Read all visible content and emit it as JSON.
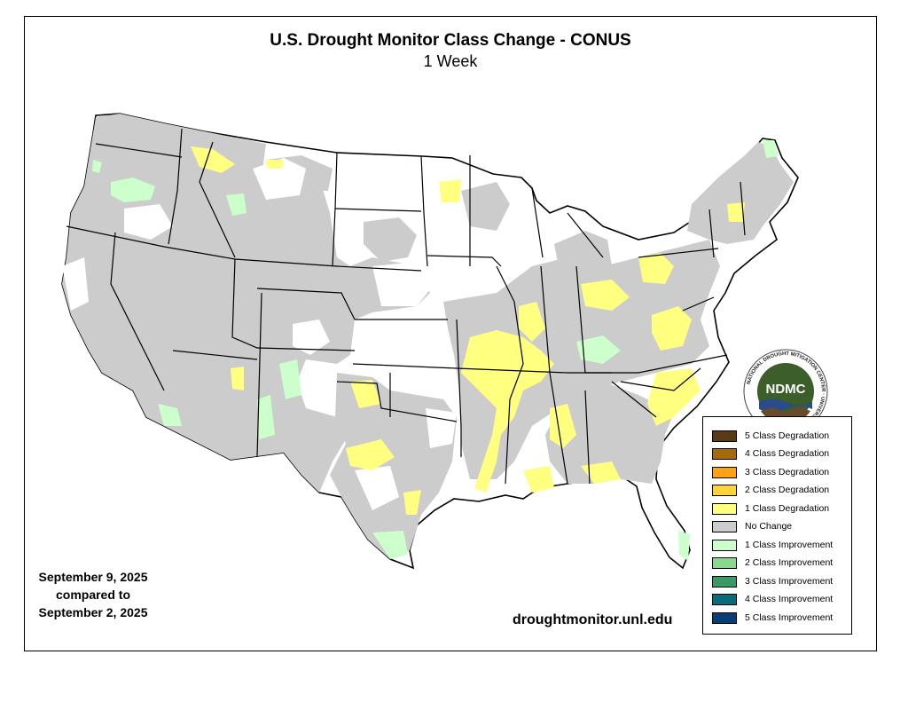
{
  "title": "U.S. Drought Monitor Class Change - CONUS",
  "subtitle": "1 Week",
  "comparison": {
    "line1": "September 9, 2025",
    "line2": "compared to",
    "line3": "September 2, 2025"
  },
  "url": "droughtmonitor.unl.edu",
  "logo": {
    "center_text": "NDMC",
    "ring_text": "NATIONAL DROUGHT MITIGATION CENTER · UNIVERSITY OF NEBRASKA"
  },
  "legend": [
    {
      "label": "5 Class Degradation",
      "color": "#5a3a12"
    },
    {
      "label": "4 Class Degradation",
      "color": "#a6690e"
    },
    {
      "label": "3 Class Degradation",
      "color": "#ffa216"
    },
    {
      "label": "2 Class Degradation",
      "color": "#ffd33a"
    },
    {
      "label": "1 Class Degradation",
      "color": "#ffff80"
    },
    {
      "label": "No Change",
      "color": "#cccccc"
    },
    {
      "label": "1 Class Improvement",
      "color": "#ccffcc"
    },
    {
      "label": "2 Class Improvement",
      "color": "#88d88e"
    },
    {
      "label": "3 Class Improvement",
      "color": "#3a9a64"
    },
    {
      "label": "4 Class Improvement",
      "color": "#0a6c78"
    },
    {
      "label": "5 Class Improvement",
      "color": "#083e76"
    }
  ],
  "colors": {
    "no_change": "#cccccc",
    "degradation_1": "#ffff80",
    "improvement_1": "#ccffcc",
    "state_lines": "#000000",
    "logo_green": "#3b5e2b"
  }
}
